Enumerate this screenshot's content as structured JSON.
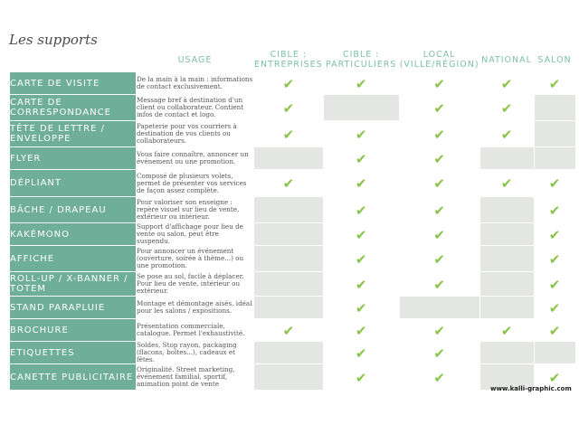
{
  "title": "Les supports",
  "columns": [
    "USAGE",
    "CIBLE : ENTREPRISES",
    "CIBLE : PARTICULIERS",
    "LOCAL (VILLE/RÉGION)",
    "NATIONAL",
    "SALON"
  ],
  "check_color": "#8bc34a",
  "rows": [
    {
      "label": "CARTE DE VISITE",
      "usage": "De la main à la main : informations de contact exclusivement.",
      "checks": [
        true,
        true,
        true,
        true,
        true
      ]
    },
    {
      "label": "CARTE DE CORRESPONDANCE",
      "usage": "Message bref à destination d'un client ou collaborateur. Contient infos de contact et logo.",
      "checks": [
        true,
        false,
        true,
        true,
        false
      ]
    },
    {
      "label": "TÊTE DE LETTRE / ENVELOPPE",
      "usage": "Papeterie pour vos courriers à destination de vos clients ou collaborateurs.",
      "checks": [
        true,
        true,
        true,
        true,
        false
      ]
    },
    {
      "label": "FLYER",
      "usage": "Vous faire connaître, annoncer un événement ou une promotion.",
      "checks": [
        false,
        true,
        true,
        false,
        false
      ]
    },
    {
      "label": "DÉPLIANT",
      "usage": "Composé de plusieurs volets, permet de présenter vos services de façon assez complète.",
      "checks": [
        true,
        true,
        true,
        true,
        true
      ]
    },
    {
      "label": "BÂCHE / DRAPEAU",
      "usage": "Pour valoriser son enseigne : repère visuel sur lieu de vente, extérieur ou intérieur.",
      "checks": [
        false,
        true,
        true,
        false,
        true
      ]
    },
    {
      "label": "KAKÉMONO",
      "usage": "Support d'affichage pour lieu de vente ou salon, peut être suspendu.",
      "checks": [
        false,
        true,
        true,
        false,
        true
      ]
    },
    {
      "label": "AFFICHE",
      "usage": "Pour annoncer un événement (ouverture, soirée à thème...) ou une promotion.",
      "checks": [
        false,
        true,
        true,
        false,
        true
      ]
    },
    {
      "label": "ROLL-UP / X-BANNER / TOTEM",
      "usage": "Se pose au sol, facile à déplacer. Pour lieu de vente, intérieur ou extérieur.",
      "checks": [
        false,
        true,
        true,
        false,
        true
      ]
    },
    {
      "label": "STAND PARAPLUIE",
      "usage": "Montage et démontage aisés, idéal pour les salons / expositions.",
      "checks": [
        false,
        true,
        false,
        false,
        true
      ]
    },
    {
      "label": "BROCHURE",
      "usage": "Présentation commerciale, catalogue. Permet l'exhaustivité.",
      "checks": [
        true,
        true,
        true,
        true,
        true
      ]
    },
    {
      "label": "ETIQUETTES",
      "usage": "Soldes, Stop rayon, packaging (flacons, boîtes...), cadeaux et fêtes.",
      "checks": [
        false,
        true,
        true,
        false,
        false
      ]
    },
    {
      "label": "CANETTE PUBLICITAIRE",
      "usage": "Originalité. Street marketing, événement familial, sportif, animation point de vente",
      "checks": [
        false,
        true,
        true,
        false,
        true
      ]
    }
  ],
  "website": "www.kalli-graphic.com"
}
